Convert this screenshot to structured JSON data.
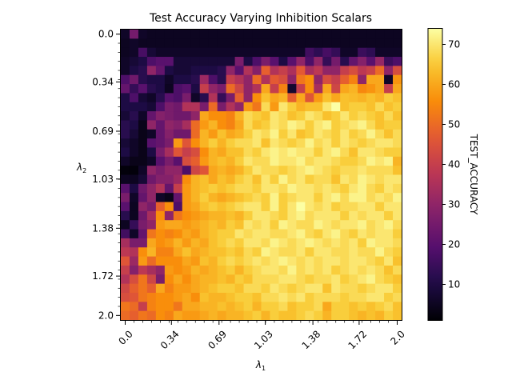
{
  "chart_data": {
    "type": "heatmap",
    "title": "Test Accuracy Varying Inhibition Scalars",
    "xlabel": "λ1",
    "ylabel": "λ2",
    "colorbar_label": "TEST_ACCURACY",
    "colormap": "inferno",
    "x_range": [
      0.0,
      2.0
    ],
    "y_range": [
      0.0,
      2.0
    ],
    "n_x": 32,
    "n_y": 32,
    "color_range": [
      1,
      74
    ],
    "x_tick_labels": [
      "0.0",
      "0.34",
      "0.69",
      "1.03",
      "1.38",
      "1.72",
      "2.0"
    ],
    "y_tick_labels": [
      "0.0",
      "0.34",
      "0.69",
      "1.03",
      "1.38",
      "1.72",
      "2.0"
    ],
    "colorbar_ticks": [
      10,
      20,
      30,
      40,
      50,
      60,
      70
    ],
    "cells": [
      [
        6,
        25,
        6,
        5,
        5,
        5,
        5,
        5,
        5,
        5,
        5,
        5,
        5,
        5,
        5,
        5,
        5,
        5,
        5,
        5,
        5,
        5,
        5,
        5,
        5,
        5,
        5,
        5,
        5,
        5,
        5,
        5
      ],
      [
        5,
        6,
        5,
        5,
        5,
        5,
        5,
        5,
        5,
        5,
        5,
        5,
        5,
        5,
        5,
        5,
        5,
        5,
        5,
        5,
        5,
        5,
        5,
        5,
        5,
        5,
        5,
        5,
        5,
        5,
        5,
        5
      ],
      [
        5,
        6,
        17,
        8,
        6,
        6,
        6,
        6,
        6,
        6,
        6,
        6,
        6,
        6,
        6,
        6,
        6,
        6,
        6,
        6,
        6,
        16,
        13,
        17,
        14,
        6,
        6,
        15,
        13,
        6,
        6,
        6
      ],
      [
        6,
        8,
        10,
        18,
        20,
        20,
        8,
        8,
        8,
        8,
        8,
        8,
        8,
        26,
        10,
        18,
        26,
        20,
        10,
        20,
        30,
        18,
        30,
        14,
        25,
        12,
        22,
        28,
        20,
        31,
        15,
        18
      ],
      [
        6,
        10,
        12,
        30,
        22,
        10,
        8,
        8,
        10,
        10,
        10,
        12,
        30,
        20,
        36,
        28,
        48,
        36,
        40,
        35,
        47,
        34,
        38,
        30,
        30,
        40,
        44,
        38,
        41,
        50,
        30,
        44
      ],
      [
        18,
        24,
        12,
        10,
        10,
        6,
        10,
        10,
        12,
        32,
        18,
        12,
        40,
        36,
        30,
        50,
        36,
        47,
        44,
        30,
        52,
        56,
        30,
        44,
        40,
        48,
        54,
        30,
        60,
        60,
        6,
        57
      ],
      [
        22,
        14,
        20,
        12,
        10,
        5,
        18,
        20,
        10,
        40,
        30,
        26,
        50,
        42,
        30,
        36,
        60,
        40,
        54,
        7,
        40,
        56,
        34,
        60,
        42,
        60,
        62,
        55,
        57,
        60,
        40,
        60
      ],
      [
        10,
        18,
        8,
        6,
        12,
        20,
        18,
        26,
        6,
        12,
        36,
        14,
        26,
        48,
        30,
        56,
        64,
        60,
        62,
        48,
        60,
        46,
        58,
        64,
        60,
        64,
        63,
        62,
        64,
        62,
        66,
        64
      ],
      [
        10,
        10,
        10,
        8,
        18,
        26,
        24,
        36,
        36,
        26,
        50,
        26,
        36,
        30,
        58,
        52,
        68,
        58,
        70,
        66,
        62,
        64,
        64,
        70,
        74,
        64,
        66,
        66,
        64,
        68,
        64,
        66
      ],
      [
        8,
        12,
        6,
        22,
        28,
        26,
        24,
        24,
        30,
        60,
        56,
        56,
        54,
        62,
        68,
        66,
        64,
        70,
        68,
        64,
        66,
        70,
        68,
        64,
        66,
        70,
        66,
        68,
        66,
        64,
        68,
        64
      ],
      [
        12,
        10,
        4,
        30,
        22,
        30,
        28,
        34,
        50,
        58,
        62,
        56,
        54,
        60,
        68,
        64,
        66,
        70,
        68,
        72,
        70,
        66,
        70,
        72,
        66,
        68,
        70,
        72,
        68,
        64,
        66,
        66
      ],
      [
        12,
        8,
        4,
        6,
        22,
        28,
        24,
        24,
        50,
        62,
        58,
        64,
        60,
        62,
        66,
        70,
        68,
        72,
        66,
        70,
        64,
        66,
        70,
        68,
        66,
        70,
        66,
        68,
        72,
        68,
        64,
        68
      ],
      [
        8,
        6,
        4,
        20,
        22,
        26,
        58,
        46,
        56,
        62,
        66,
        62,
        66,
        68,
        68,
        70,
        64,
        70,
        68,
        66,
        68,
        72,
        68,
        70,
        66,
        70,
        68,
        66,
        68,
        70,
        70,
        68
      ],
      [
        10,
        6,
        4,
        10,
        26,
        34,
        46,
        40,
        44,
        56,
        62,
        60,
        64,
        64,
        68,
        66,
        70,
        72,
        70,
        72,
        70,
        70,
        66,
        70,
        72,
        68,
        64,
        70,
        70,
        68,
        66,
        66
      ],
      [
        6,
        4,
        4,
        6,
        20,
        26,
        20,
        44,
        48,
        58,
        62,
        64,
        62,
        66,
        70,
        68,
        68,
        72,
        70,
        70,
        72,
        68,
        70,
        70,
        68,
        66,
        66,
        68,
        72,
        70,
        72,
        62
      ],
      [
        2,
        2,
        6,
        30,
        26,
        30,
        30,
        18,
        42,
        46,
        60,
        62,
        60,
        62,
        66,
        70,
        68,
        68,
        66,
        68,
        70,
        72,
        70,
        68,
        66,
        68,
        68,
        70,
        68,
        68,
        68,
        64
      ],
      [
        5,
        5,
        8,
        24,
        28,
        28,
        32,
        56,
        62,
        64,
        60,
        64,
        62,
        66,
        68,
        64,
        70,
        66,
        72,
        68,
        70,
        66,
        68,
        68,
        64,
        70,
        68,
        72,
        70,
        68,
        70,
        70
      ],
      [
        20,
        10,
        24,
        30,
        36,
        22,
        40,
        58,
        62,
        64,
        66,
        64,
        66,
        68,
        68,
        66,
        70,
        70,
        68,
        72,
        70,
        70,
        68,
        70,
        68,
        66,
        70,
        72,
        68,
        66,
        70,
        68
      ],
      [
        26,
        6,
        22,
        30,
        6,
        4,
        22,
        58,
        62,
        66,
        62,
        60,
        62,
        64,
        66,
        68,
        66,
        72,
        66,
        68,
        70,
        70,
        66,
        70,
        72,
        68,
        72,
        72,
        68,
        70,
        68,
        72
      ],
      [
        20,
        5,
        30,
        26,
        48,
        56,
        18,
        58,
        60,
        64,
        66,
        64,
        66,
        68,
        70,
        70,
        66,
        72,
        66,
        70,
        74,
        70,
        68,
        70,
        66,
        68,
        68,
        70,
        70,
        66,
        70,
        70
      ],
      [
        12,
        5,
        24,
        34,
        56,
        30,
        52,
        56,
        58,
        60,
        62,
        62,
        64,
        62,
        66,
        70,
        70,
        68,
        66,
        70,
        72,
        68,
        70,
        70,
        70,
        66,
        70,
        68,
        70,
        70,
        66,
        70
      ],
      [
        5,
        14,
        26,
        30,
        58,
        60,
        60,
        58,
        60,
        62,
        64,
        62,
        66,
        64,
        70,
        68,
        70,
        66,
        72,
        70,
        68,
        68,
        72,
        70,
        68,
        70,
        70,
        72,
        68,
        70,
        72,
        68
      ],
      [
        16,
        6,
        22,
        52,
        56,
        54,
        56,
        60,
        58,
        62,
        64,
        66,
        66,
        70,
        68,
        70,
        70,
        68,
        68,
        70,
        72,
        68,
        66,
        70,
        72,
        68,
        66,
        70,
        68,
        70,
        70,
        66
      ],
      [
        34,
        26,
        26,
        60,
        56,
        58,
        62,
        58,
        62,
        60,
        64,
        66,
        68,
        66,
        70,
        70,
        68,
        72,
        70,
        68,
        70,
        72,
        70,
        68,
        70,
        68,
        70,
        66,
        72,
        70,
        70,
        68
      ],
      [
        38,
        36,
        56,
        62,
        54,
        54,
        60,
        64,
        60,
        62,
        64,
        64,
        66,
        64,
        68,
        66,
        72,
        70,
        68,
        68,
        70,
        66,
        70,
        70,
        68,
        68,
        70,
        68,
        68,
        72,
        68,
        66
      ],
      [
        46,
        32,
        58,
        50,
        56,
        56,
        56,
        60,
        58,
        64,
        62,
        66,
        68,
        66,
        68,
        70,
        68,
        70,
        72,
        70,
        68,
        70,
        68,
        70,
        70,
        68,
        70,
        70,
        68,
        66,
        70,
        64
      ],
      [
        40,
        28,
        38,
        34,
        30,
        58,
        56,
        58,
        62,
        60,
        62,
        64,
        66,
        62,
        66,
        68,
        70,
        70,
        68,
        72,
        68,
        70,
        68,
        70,
        66,
        68,
        70,
        68,
        70,
        68,
        64,
        68
      ],
      [
        36,
        44,
        52,
        42,
        26,
        56,
        60,
        56,
        60,
        62,
        62,
        64,
        62,
        66,
        64,
        68,
        68,
        68,
        70,
        70,
        68,
        66,
        68,
        68,
        70,
        66,
        68,
        70,
        72,
        68,
        66,
        64
      ],
      [
        42,
        48,
        52,
        48,
        60,
        54,
        58,
        58,
        60,
        62,
        64,
        66,
        66,
        64,
        68,
        68,
        66,
        70,
        68,
        66,
        68,
        70,
        70,
        64,
        70,
        68,
        68,
        66,
        68,
        70,
        70,
        66
      ],
      [
        44,
        46,
        52,
        54,
        56,
        56,
        58,
        60,
        56,
        64,
        62,
        62,
        64,
        66,
        66,
        64,
        68,
        68,
        70,
        68,
        70,
        66,
        68,
        68,
        68,
        66,
        68,
        68,
        70,
        70,
        66,
        68
      ],
      [
        52,
        50,
        40,
        54,
        56,
        56,
        52,
        60,
        60,
        62,
        62,
        64,
        62,
        64,
        66,
        62,
        66,
        66,
        68,
        64,
        66,
        66,
        68,
        60,
        66,
        66,
        64,
        66,
        64,
        66,
        68,
        64
      ],
      [
        50,
        48,
        52,
        50,
        56,
        54,
        60,
        58,
        58,
        60,
        62,
        60,
        62,
        62,
        64,
        66,
        62,
        66,
        64,
        64,
        66,
        68,
        66,
        62,
        66,
        66,
        64,
        62,
        64,
        62,
        66,
        64
      ]
    ]
  }
}
